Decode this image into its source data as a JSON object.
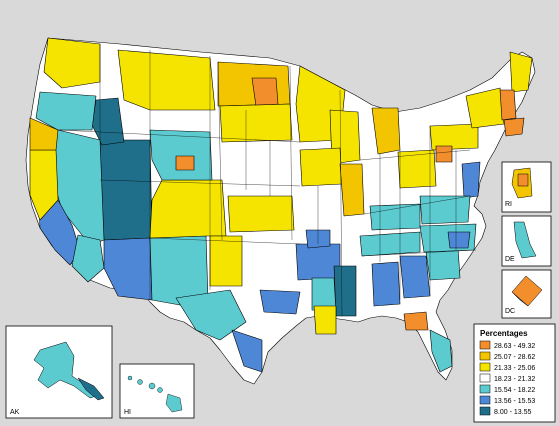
{
  "map": {
    "insets": [
      {
        "key": "ak",
        "label": "AK"
      },
      {
        "key": "hi",
        "label": "HI"
      },
      {
        "key": "ri",
        "label": "RI"
      },
      {
        "key": "de",
        "label": "DE"
      },
      {
        "key": "dc",
        "label": "DC"
      }
    ]
  },
  "legend": {
    "title": "Percentages",
    "classes": [
      {
        "range": "28.63 - 49.32",
        "color": "#f28e2b"
      },
      {
        "range": "25.07 - 28.62",
        "color": "#f2c500"
      },
      {
        "range": "21.33 - 25.06",
        "color": "#f5e400"
      },
      {
        "range": "18.23 - 21.32",
        "color": "#ffffff"
      },
      {
        "range": "15.54 - 18.22",
        "color": "#5ccbd0"
      },
      {
        "range": "13.56 - 15.53",
        "color": "#4e87d6"
      },
      {
        "range": "8.00 - 13.55",
        "color": "#1f6f8b"
      }
    ]
  }
}
